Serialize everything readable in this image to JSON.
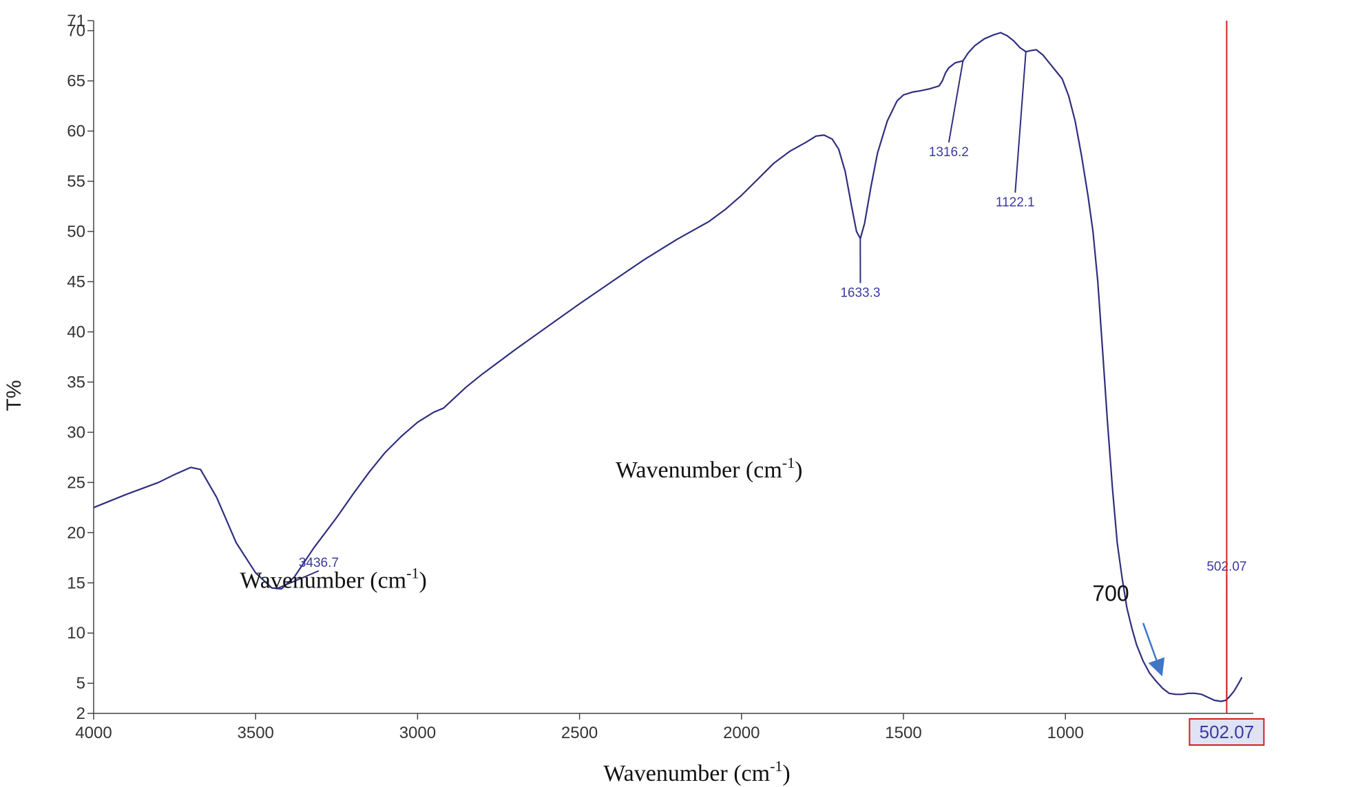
{
  "chart_data": {
    "type": "line",
    "title": "",
    "ylabel": "T%",
    "xlabel": "Wavenumber (cm-1)",
    "xlabel_parts": {
      "base": "Wavenumber (cm",
      "sup": "-1",
      "close": ")"
    },
    "overlay_labels": [
      {
        "base": "Wavenumber (cm",
        "sup": "-1",
        "close": ")",
        "x": 2100,
        "y": 25.5
      },
      {
        "base": "Wavenumber (cm",
        "sup": "-1",
        "close": ")",
        "x": 3260,
        "y": 14.5
      }
    ],
    "xlim": [
      4000,
      420
    ],
    "ylim": [
      2,
      71
    ],
    "x_ticks": [
      4000,
      3500,
      3000,
      2500,
      2000,
      1500,
      1000
    ],
    "y_ticks": [
      2,
      5,
      10,
      15,
      20,
      25,
      30,
      35,
      40,
      45,
      50,
      55,
      60,
      65,
      70,
      71
    ],
    "series": [
      {
        "color": "#2e2e7e",
        "points": [
          [
            4000,
            22.5
          ],
          [
            3900,
            23.8
          ],
          [
            3800,
            25.0
          ],
          [
            3750,
            25.8
          ],
          [
            3700,
            26.5
          ],
          [
            3670,
            26.3
          ],
          [
            3620,
            23.5
          ],
          [
            3560,
            19.0
          ],
          [
            3500,
            16.0
          ],
          [
            3450,
            14.5
          ],
          [
            3420,
            14.4
          ],
          [
            3380,
            15.6
          ],
          [
            3320,
            18.5
          ],
          [
            3250,
            21.5
          ],
          [
            3200,
            23.8
          ],
          [
            3150,
            26.0
          ],
          [
            3100,
            28.0
          ],
          [
            3050,
            29.6
          ],
          [
            3000,
            31.0
          ],
          [
            2950,
            32.0
          ],
          [
            2920,
            32.4
          ],
          [
            2900,
            33.0
          ],
          [
            2850,
            34.5
          ],
          [
            2800,
            35.8
          ],
          [
            2700,
            38.2
          ],
          [
            2600,
            40.5
          ],
          [
            2500,
            42.8
          ],
          [
            2400,
            45.0
          ],
          [
            2300,
            47.2
          ],
          [
            2200,
            49.2
          ],
          [
            2100,
            51.0
          ],
          [
            2050,
            52.2
          ],
          [
            2000,
            53.6
          ],
          [
            1950,
            55.2
          ],
          [
            1900,
            56.8
          ],
          [
            1850,
            58.0
          ],
          [
            1800,
            58.9
          ],
          [
            1770,
            59.5
          ],
          [
            1745,
            59.6
          ],
          [
            1720,
            59.2
          ],
          [
            1700,
            58.2
          ],
          [
            1680,
            56.0
          ],
          [
            1660,
            52.5
          ],
          [
            1645,
            50.0
          ],
          [
            1633,
            49.3
          ],
          [
            1620,
            50.8
          ],
          [
            1600,
            54.5
          ],
          [
            1580,
            57.8
          ],
          [
            1550,
            61.0
          ],
          [
            1520,
            63.0
          ],
          [
            1500,
            63.6
          ],
          [
            1470,
            63.9
          ],
          [
            1450,
            64.0
          ],
          [
            1420,
            64.2
          ],
          [
            1390,
            64.5
          ],
          [
            1380,
            65.0
          ],
          [
            1370,
            65.8
          ],
          [
            1360,
            66.3
          ],
          [
            1340,
            66.8
          ],
          [
            1316,
            67.0
          ],
          [
            1300,
            67.8
          ],
          [
            1280,
            68.5
          ],
          [
            1250,
            69.2
          ],
          [
            1220,
            69.6
          ],
          [
            1200,
            69.8
          ],
          [
            1180,
            69.5
          ],
          [
            1160,
            69.0
          ],
          [
            1140,
            68.3
          ],
          [
            1122,
            67.9
          ],
          [
            1110,
            68.0
          ],
          [
            1090,
            68.1
          ],
          [
            1070,
            67.6
          ],
          [
            1050,
            66.8
          ],
          [
            1030,
            66.0
          ],
          [
            1010,
            65.2
          ],
          [
            990,
            63.5
          ],
          [
            970,
            61.0
          ],
          [
            950,
            57.5
          ],
          [
            930,
            53.5
          ],
          [
            915,
            50.0
          ],
          [
            900,
            45.0
          ],
          [
            885,
            38.0
          ],
          [
            870,
            31.0
          ],
          [
            855,
            24.5
          ],
          [
            840,
            19.0
          ],
          [
            825,
            15.5
          ],
          [
            810,
            12.5
          ],
          [
            795,
            10.5
          ],
          [
            780,
            8.8
          ],
          [
            760,
            7.2
          ],
          [
            740,
            6.0
          ],
          [
            720,
            5.2
          ],
          [
            700,
            4.5
          ],
          [
            680,
            4.0
          ],
          [
            660,
            3.9
          ],
          [
            640,
            3.9
          ],
          [
            620,
            4.0
          ],
          [
            600,
            4.0
          ],
          [
            580,
            3.9
          ],
          [
            560,
            3.6
          ],
          [
            540,
            3.3
          ],
          [
            520,
            3.2
          ],
          [
            505,
            3.3
          ],
          [
            495,
            3.6
          ],
          [
            480,
            4.2
          ],
          [
            465,
            5.0
          ],
          [
            455,
            5.6
          ]
        ]
      }
    ],
    "peaks": [
      {
        "label": "3436.7",
        "x": 3436.7,
        "y": 14.4,
        "label_x": 3305,
        "label_y": 16.2
      },
      {
        "label": "1633.3",
        "x": 1633.3,
        "y": 49.3,
        "label_x": 1633,
        "label_y": 45.0
      },
      {
        "label": "1316.2",
        "x": 1316.2,
        "y": 67.0,
        "label_x": 1360,
        "label_y": 59.0
      },
      {
        "label": "1122.1",
        "x": 1122.1,
        "y": 67.9,
        "label_x": 1155,
        "label_y": 54.0
      },
      {
        "label": "502.07",
        "x": 502.07,
        "y": 3.2,
        "label_x": 502,
        "label_y": 15.8
      }
    ],
    "cursor": {
      "x": 502.07,
      "label": "502.07",
      "color": "#cc2222"
    },
    "annotation": {
      "text": "700",
      "arrow_from": [
        760,
        11.0
      ],
      "arrow_to": [
        710,
        6.5
      ],
      "color": "#3f76c8"
    },
    "grid": false,
    "legend": "none"
  }
}
